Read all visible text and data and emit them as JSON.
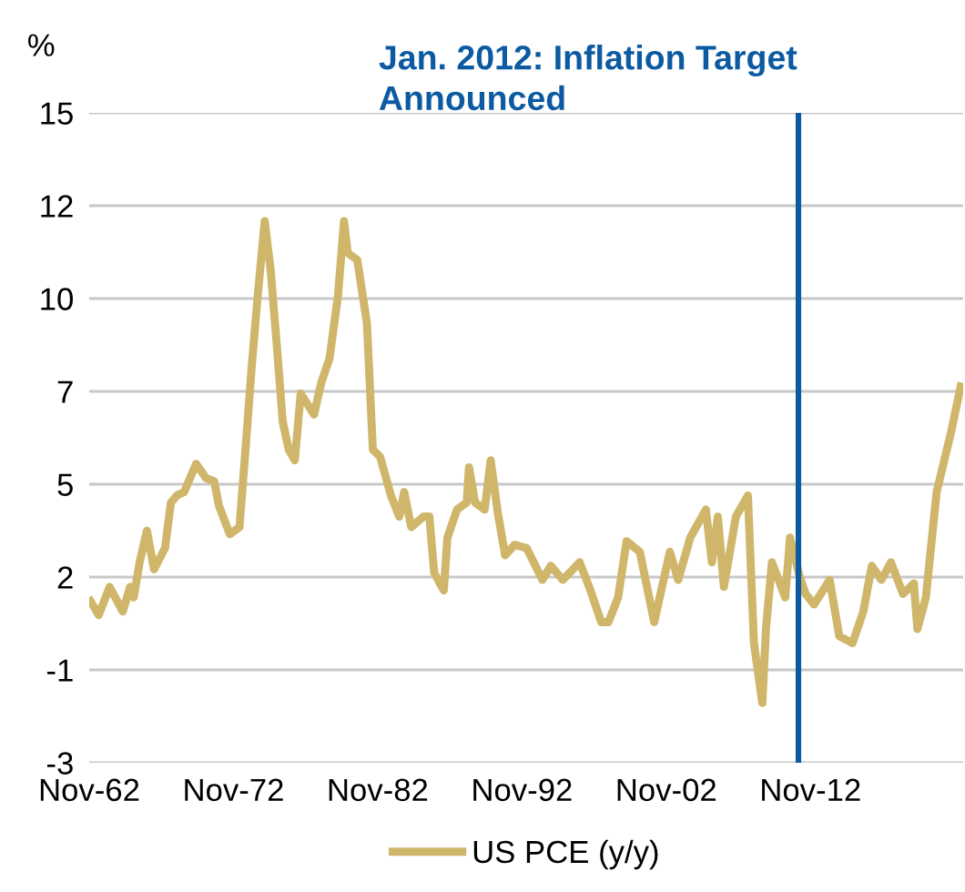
{
  "chart_data": {
    "type": "line",
    "ylabel": "%",
    "x": [
      "1962-12",
      "1963-07",
      "1964-04",
      "1965-03",
      "1965-09",
      "1965-12",
      "1966-05",
      "1966-11",
      "1967-05",
      "1968-02",
      "1968-07",
      "1968-12",
      "1969-06",
      "1970-04",
      "1970-12",
      "1971-07",
      "1971-11",
      "1972-08",
      "1973-04",
      "1973-09",
      "1974-02",
      "1974-07",
      "1975-01",
      "1975-06",
      "1975-11",
      "1976-04",
      "1976-09",
      "1977-02",
      "1977-07",
      "1978-06",
      "1978-12",
      "1979-07",
      "1980-02",
      "1980-07",
      "1980-10",
      "1981-06",
      "1982-02",
      "1982-07",
      "1983-01",
      "1983-10",
      "1984-05",
      "1984-09",
      "1985-03",
      "1986-01",
      "1986-06",
      "1986-10",
      "1987-06",
      "1987-09",
      "1988-05",
      "1989-01",
      "1989-03",
      "1989-08",
      "1990-04",
      "1990-09",
      "1991-03",
      "1991-09",
      "1992-05",
      "1993-03",
      "1994-04",
      "1994-11",
      "1995-09",
      "1996-11",
      "1997-08",
      "1998-05",
      "1998-11",
      "1999-07",
      "2000-02",
      "2001-01",
      "2002-01",
      "2003-02",
      "2003-09",
      "2004-07",
      "2005-08",
      "2006-01",
      "2006-06",
      "2006-11",
      "2007-09",
      "2008-07",
      "2008-12",
      "2009-07",
      "2009-10",
      "2010-03",
      "2011-02",
      "2011-06",
      "2012-02",
      "2012-07",
      "2013-02",
      "2014-03",
      "2014-11",
      "2015-10",
      "2016-07",
      "2017-02",
      "2017-10",
      "2018-06",
      "2019-04",
      "2020-01",
      "2020-04",
      "2020-11",
      "2021-08",
      "2022-08",
      "2023-04"
    ],
    "series": [
      {
        "name": "US PCE (y/y)",
        "color": "#cfb66a",
        "values": [
          1.2,
          0.8,
          1.6,
          0.9,
          1.6,
          1.3,
          2.3,
          3.2,
          2.1,
          2.7,
          4.0,
          4.2,
          4.3,
          5.1,
          4.7,
          4.6,
          3.9,
          3.1,
          3.3,
          5.5,
          7.8,
          9.8,
          12.0,
          10.6,
          8.5,
          6.3,
          5.5,
          5.2,
          7.1,
          6.5,
          7.4,
          8.1,
          9.9,
          12.0,
          11.1,
          10.9,
          9.1,
          5.5,
          5.3,
          4.2,
          3.6,
          4.3,
          3.3,
          3.6,
          3.6,
          2.0,
          1.5,
          3.0,
          3.8,
          4.0,
          5.0,
          4.0,
          3.8,
          5.2,
          3.7,
          2.5,
          2.8,
          2.7,
          1.8,
          2.2,
          1.8,
          2.3,
          1.5,
          0.6,
          0.6,
          1.3,
          2.9,
          2.6,
          0.6,
          2.6,
          1.8,
          3.0,
          3.8,
          2.3,
          3.6,
          1.6,
          3.6,
          4.2,
          0.0,
          -1.7,
          0.4,
          2.3,
          1.3,
          3.0,
          1.9,
          1.4,
          1.1,
          1.8,
          0.2,
          0.0,
          0.9,
          2.2,
          1.8,
          2.3,
          1.4,
          1.7,
          0.4,
          1.3,
          4.3,
          6.0,
          7.3
        ]
      }
    ],
    "xlim": [
      "1962-11",
      "2023-06"
    ],
    "xticks": [
      {
        "value": "1962-11",
        "label": "Nov-62"
      },
      {
        "value": "1972-11",
        "label": "Nov-72"
      },
      {
        "value": "1982-11",
        "label": "Nov-82"
      },
      {
        "value": "1992-11",
        "label": "Nov-92"
      },
      {
        "value": "2002-11",
        "label": "Nov-02"
      },
      {
        "value": "2012-11",
        "label": "Nov-12"
      }
    ],
    "ylim": [
      -3.4,
      15.08
    ],
    "yticks": [
      {
        "value": -3.4,
        "label": "-3"
      },
      {
        "value": -0.76,
        "label": "-1"
      },
      {
        "value": 1.88,
        "label": "2"
      },
      {
        "value": 4.52,
        "label": "5"
      },
      {
        "value": 7.16,
        "label": "7"
      },
      {
        "value": 9.8,
        "label": "10"
      },
      {
        "value": 12.44,
        "label": "12"
      },
      {
        "value": 15.08,
        "label": "15"
      }
    ],
    "ref_lines": [
      {
        "axis": "x",
        "value": "2012-01",
        "label": "Jan. 2012: Inflation Target Announced",
        "color": "#0b5aa2"
      }
    ],
    "grid": "y",
    "legend": "bottom",
    "line_style": "solid",
    "marker": "none"
  }
}
